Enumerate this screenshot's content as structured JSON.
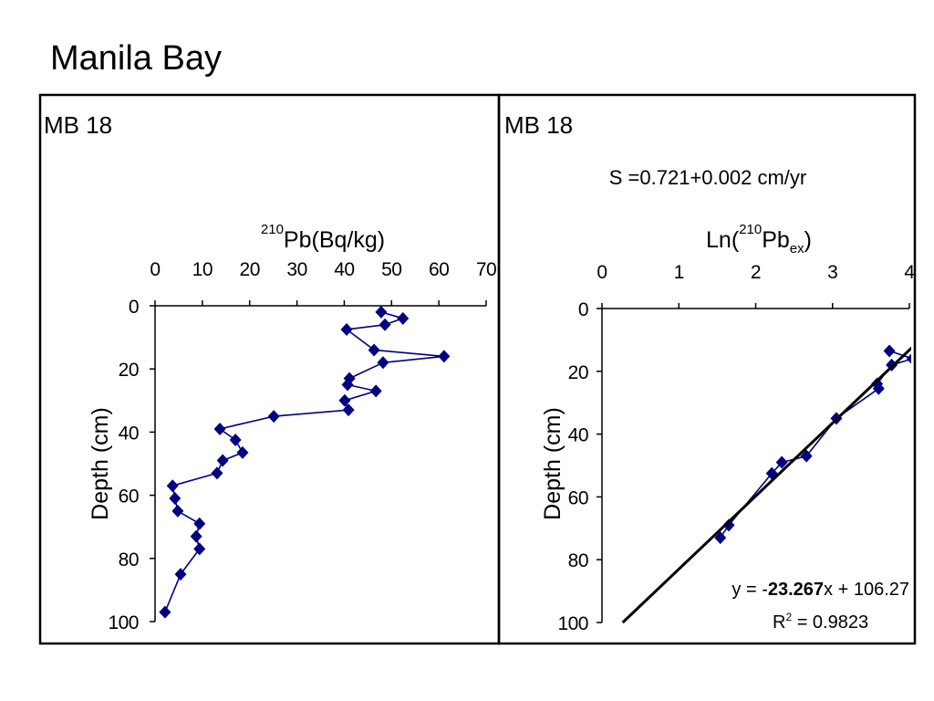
{
  "page": {
    "title": "Manila Bay"
  },
  "chart_data": [
    {
      "type": "line",
      "panel_label": "MB 18",
      "xlabel": {
        "sup": "210",
        "base": "Pb(Bq/kg)"
      },
      "ylabel": "Depth (cm)",
      "x_axis_position": "top",
      "xlim": [
        0,
        70
      ],
      "ylim": [
        0,
        100
      ],
      "y_inverted": true,
      "x_ticks": [
        0,
        10,
        20,
        30,
        40,
        50,
        60,
        70
      ],
      "y_ticks": [
        0,
        20,
        40,
        60,
        80,
        100
      ],
      "grid": false,
      "marker": "diamond",
      "series_color": "#000080",
      "series": [
        {
          "x": [
            47.8,
            52.4,
            48.6,
            40.5,
            46.3,
            61.1,
            48.2,
            41.1,
            40.7,
            46.7,
            40.1,
            40.9,
            25.1,
            13.7,
            17.0,
            18.5,
            14.3,
            13.1,
            3.7,
            4.2,
            4.8,
            9.4,
            8.7,
            9.4,
            5.4,
            2.1
          ],
          "y": [
            2,
            4,
            6,
            7.5,
            14,
            16,
            18,
            23,
            25,
            27,
            30,
            33,
            35,
            39,
            42.5,
            46.5,
            49,
            53,
            57,
            61,
            65,
            69,
            73,
            77,
            85,
            97
          ]
        }
      ]
    },
    {
      "type": "line",
      "panel_label": "MB 18",
      "annotation": "S =0.721+0.002 cm/yr",
      "xlabel": {
        "prefix": "Ln(",
        "sup": "210",
        "base": "Pb",
        "sub": "ex",
        "suffix": ")"
      },
      "ylabel": "Depth (cm)",
      "x_axis_position": "top",
      "xlim": [
        0,
        4
      ],
      "ylim": [
        0,
        100
      ],
      "y_inverted": true,
      "x_ticks": [
        0,
        1,
        2,
        3,
        4
      ],
      "y_ticks": [
        0,
        20,
        40,
        60,
        80,
        100
      ],
      "grid": false,
      "marker": "diamond",
      "series_color": "#000080",
      "series": [
        {
          "x": [
            3.74,
            4.04,
            3.77,
            3.58,
            3.6,
            3.05,
            2.66,
            2.34,
            2.21,
            1.65,
            1.54
          ],
          "y": [
            13.5,
            16,
            18,
            24,
            25.5,
            35,
            47,
            49,
            52.5,
            69,
            73
          ]
        }
      ],
      "trendline": {
        "type": "linear",
        "slope": -23.267,
        "intercept": 106.27,
        "color": "#000000"
      },
      "equation": {
        "pre": "y = -",
        "bold": "23.267",
        "post": "x + 106.27"
      },
      "r_squared": {
        "base": "R",
        "sup": "2",
        "post": " = 0.9823"
      }
    }
  ]
}
